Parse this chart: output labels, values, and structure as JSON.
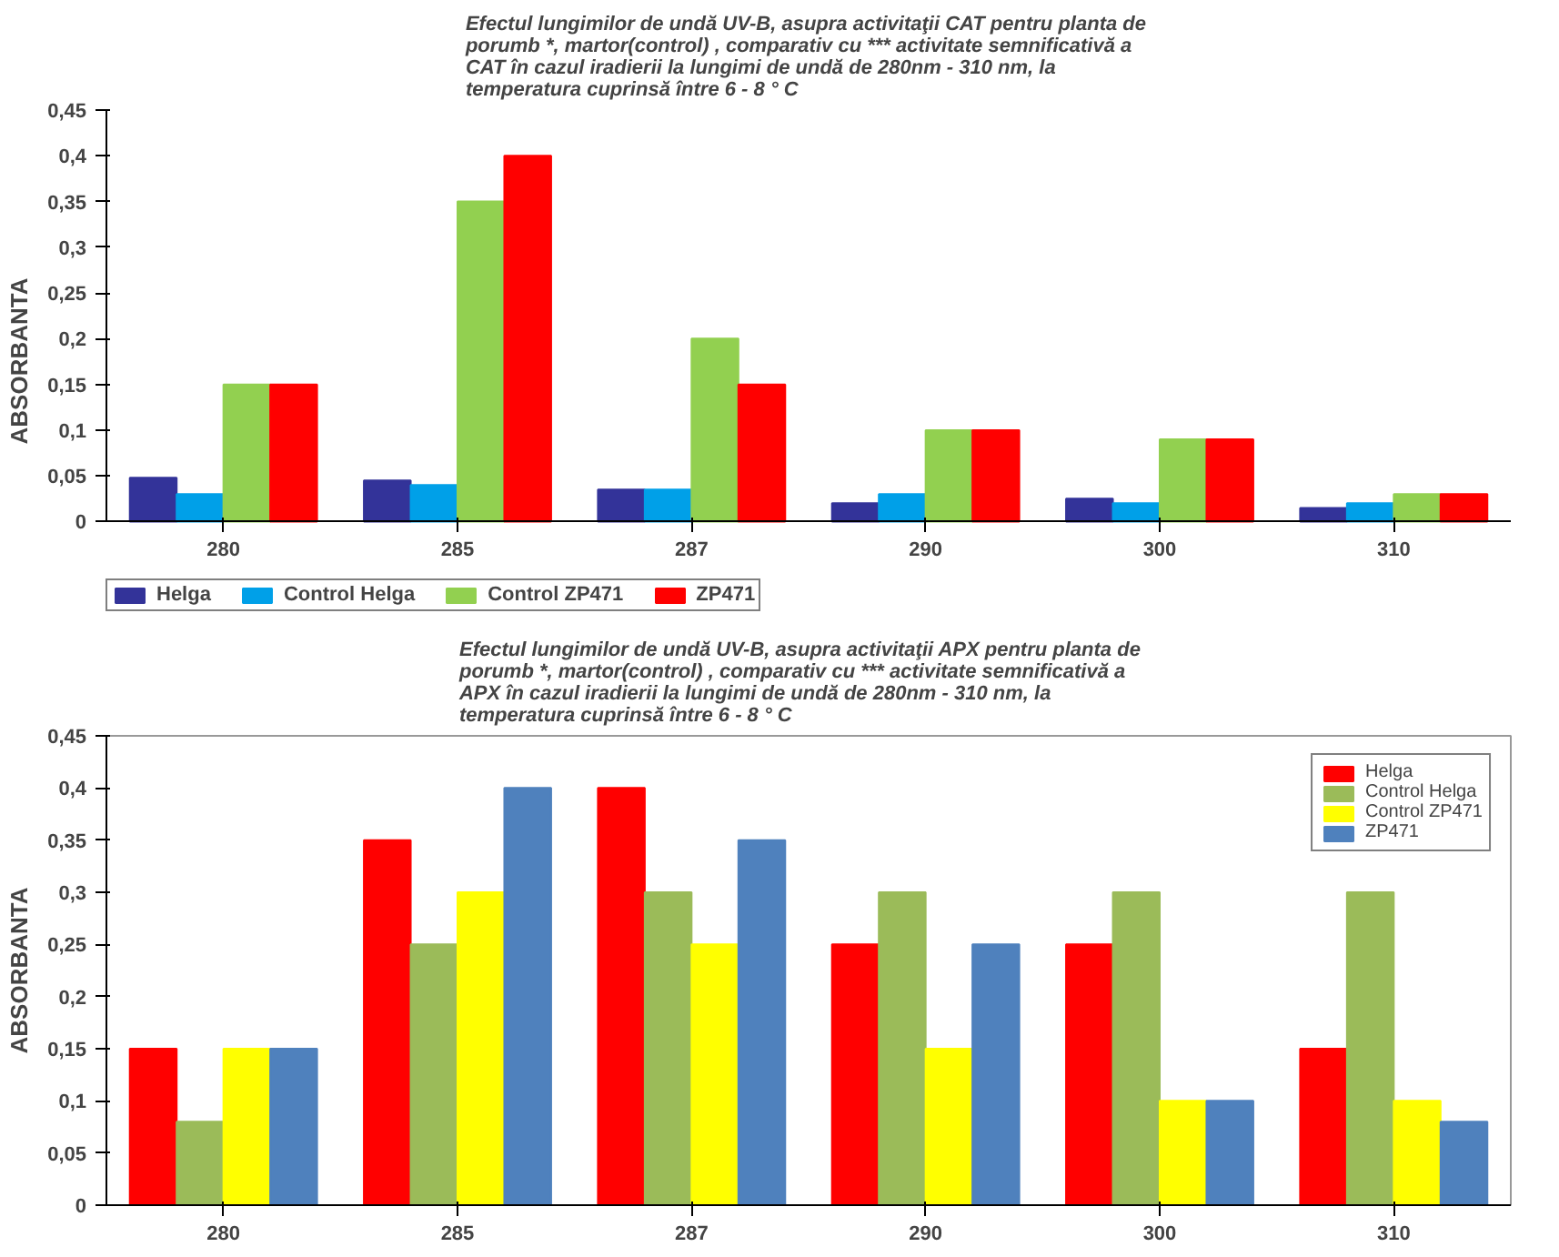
{
  "chart_data": [
    {
      "type": "bar",
      "title": "Efectul lungimilor  de undă UV-B, asupra activitaţii CAT pentru planta de\nporumb *,  martor(control) , comparativ cu *** activitate semnificativă a\nCAT în cazul iradierii la lungimi de undă de 280nm - 310 nm, la\ntemperatura cuprinsă între  6 - 8 ° C",
      "ylabel": "ABSORBANTA",
      "categories": [
        "280",
        "285",
        "287",
        "290",
        "300",
        "310"
      ],
      "series": [
        {
          "name": "Helga",
          "color": "#333399",
          "values": [
            0.048,
            0.045,
            0.035,
            0.02,
            0.025,
            0.015
          ]
        },
        {
          "name": "Control Helga",
          "color": "#00a0e8",
          "values": [
            0.03,
            0.04,
            0.035,
            0.03,
            0.02,
            0.02
          ]
        },
        {
          "name": "Control ZP471",
          "color": "#92d050",
          "values": [
            0.15,
            0.35,
            0.2,
            0.1,
            0.09,
            0.03
          ]
        },
        {
          "name": "ZP471",
          "color": "#ff0000",
          "values": [
            0.15,
            0.4,
            0.15,
            0.1,
            0.09,
            0.03
          ]
        }
      ],
      "ylim": [
        0,
        0.45
      ],
      "yticks": [
        {
          "value": 0,
          "label": "0"
        },
        {
          "value": 0.05,
          "label": "0,05"
        },
        {
          "value": 0.1,
          "label": "0,1"
        },
        {
          "value": 0.15,
          "label": "0,15"
        },
        {
          "value": 0.2,
          "label": "0,2"
        },
        {
          "value": 0.25,
          "label": "0,25"
        },
        {
          "value": 0.3,
          "label": "0,3"
        },
        {
          "value": 0.35,
          "label": "0,35"
        },
        {
          "value": 0.4,
          "label": "0,4"
        },
        {
          "value": 0.45,
          "label": "0,45"
        }
      ],
      "legend": "bottom"
    },
    {
      "type": "bar",
      "title": "Efectul lungimilor   de undă  UV-B, asupra activitaţii APX pentru planta de\nporumb *,  martor(control) , comparativ cu *** activitate semnificativă a\nAPX în cazul iradierii la lungimi de undă de 280nm - 310 nm, la\ntemperatura cuprinsă între  6 - 8 ° C",
      "ylabel": "ABSORBANTA",
      "categories": [
        "280",
        "285",
        "287",
        "290",
        "300",
        "310"
      ],
      "series": [
        {
          "name": "Helga",
          "color": "#ff0000",
          "values": [
            0.15,
            0.35,
            0.4,
            0.25,
            0.25,
            0.15
          ]
        },
        {
          "name": "Control Helga",
          "color": "#9bbb59",
          "values": [
            0.08,
            0.25,
            0.3,
            0.3,
            0.3,
            0.3
          ]
        },
        {
          "name": "Control ZP471",
          "color": "#ffff00",
          "values": [
            0.15,
            0.3,
            0.25,
            0.15,
            0.1,
            0.1
          ]
        },
        {
          "name": "ZP471",
          "color": "#4f81bd",
          "values": [
            0.15,
            0.4,
            0.35,
            0.25,
            0.1,
            0.08
          ]
        }
      ],
      "ylim": [
        0,
        0.45
      ],
      "yticks": [
        {
          "value": 0,
          "label": "0"
        },
        {
          "value": 0.05,
          "label": "0,05"
        },
        {
          "value": 0.1,
          "label": "0,1"
        },
        {
          "value": 0.15,
          "label": "0,15"
        },
        {
          "value": 0.2,
          "label": "0,2"
        },
        {
          "value": 0.25,
          "label": "0,25"
        },
        {
          "value": 0.3,
          "label": "0,3"
        },
        {
          "value": 0.35,
          "label": "0,35"
        },
        {
          "value": 0.4,
          "label": "0,4"
        },
        {
          "value": 0.45,
          "label": "0,45"
        }
      ],
      "legend": "top right"
    }
  ]
}
